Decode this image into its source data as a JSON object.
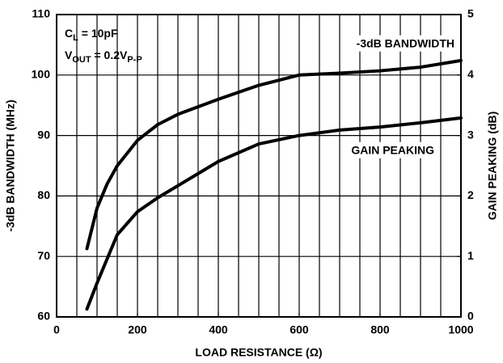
{
  "chart_data": {
    "type": "line",
    "xlabel": "LOAD RESISTANCE (Ω)",
    "ylabel": "-3dB BANDWIDTH (MHz)",
    "y2label": "GAIN PEAKING (dB)",
    "annotations": [
      [
        "C",
        "L",
        " = 10pF"
      ],
      [
        "V",
        "OUT",
        " = 0.2V",
        "P-P"
      ]
    ],
    "xlim": [
      0,
      1000
    ],
    "xticks": [
      0,
      200,
      400,
      600,
      800,
      1000
    ],
    "xgrid": [
      50,
      100,
      150,
      200,
      250,
      300,
      350,
      400,
      450,
      500,
      550,
      600,
      650,
      700,
      750,
      800,
      850,
      900,
      950
    ],
    "ylim": [
      60,
      110
    ],
    "yticks": [
      60,
      70,
      80,
      90,
      100,
      110
    ],
    "y2lim": [
      0,
      5
    ],
    "y2ticks": [
      0,
      1,
      2,
      3,
      4,
      5
    ],
    "grid": true,
    "color": "#000000",
    "series": [
      {
        "name": "-3dB BANDWIDTH",
        "color": "#000000",
        "x": [
          75,
          100,
          125,
          150,
          200,
          250,
          300,
          400,
          500,
          600,
          700,
          800,
          900,
          1000
        ],
        "values": [
          71.3,
          78,
          82,
          85,
          89.2,
          91.8,
          93.5,
          96,
          98.3,
          100,
          100.3,
          100.7,
          101.3,
          102.4
        ]
      },
      {
        "name": "GAIN PEAKING",
        "color": "#000000",
        "axis": "y2",
        "x": [
          75,
          100,
          150,
          200,
          250,
          300,
          400,
          500,
          600,
          700,
          800,
          900,
          1000
        ],
        "values": [
          0.13,
          0.56,
          1.36,
          1.74,
          1.97,
          2.17,
          2.57,
          2.86,
          3.0,
          3.09,
          3.14,
          3.21,
          3.29
        ]
      }
    ]
  }
}
